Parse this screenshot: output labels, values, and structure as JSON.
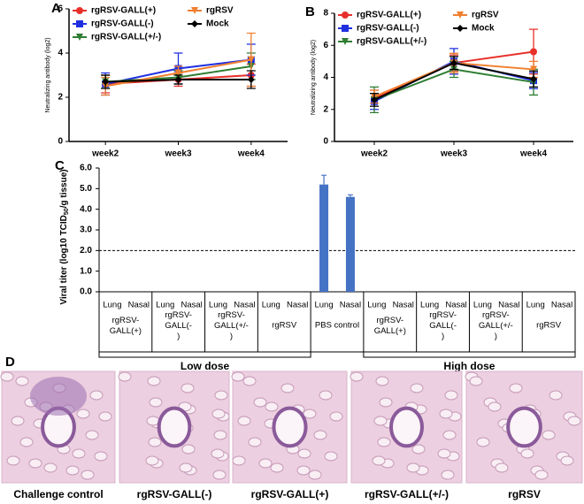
{
  "panel_labels": [
    "A",
    "B",
    "C",
    "D"
  ],
  "chart_data": [
    {
      "type": "line",
      "ylabel": "Neutralizing antibody (log2)",
      "categories": [
        "week2",
        "week3",
        "week4"
      ],
      "ylim": [
        0,
        6
      ],
      "yticks": [
        0,
        2,
        4,
        6
      ],
      "legend": "upper left",
      "series": [
        {
          "name": "rgRSV-GALL(+)",
          "color": "#e8302a",
          "marker": "circle",
          "values": [
            2.6,
            2.8,
            3.0
          ],
          "errors": [
            0.4,
            0.3,
            0.5
          ]
        },
        {
          "name": "rgRSV-GALL(-)",
          "color": "#1f2fe0",
          "marker": "square",
          "values": [
            2.6,
            3.3,
            3.7
          ],
          "errors": [
            0.5,
            0.7,
            0.7
          ]
        },
        {
          "name": "rgRSV-GALL(+/-)",
          "color": "#2e7d32",
          "marker": "triangle",
          "values": [
            2.7,
            2.9,
            3.4
          ],
          "errors": [
            0.3,
            0.3,
            0.6
          ]
        },
        {
          "name": "rgRSV",
          "color": "#f08030",
          "marker": "triangle",
          "values": [
            2.5,
            3.1,
            3.7
          ],
          "errors": [
            0.4,
            0.3,
            1.2
          ]
        },
        {
          "name": "Mock",
          "color": "#000000",
          "marker": "diamond",
          "values": [
            2.7,
            2.8,
            2.8
          ],
          "errors": [
            0.3,
            0.2,
            0.4
          ]
        }
      ]
    },
    {
      "type": "line",
      "ylabel": "Neutralizing antibody (log2)",
      "categories": [
        "week2",
        "week3",
        "week4"
      ],
      "ylim": [
        0,
        8
      ],
      "yticks": [
        0,
        2,
        4,
        6,
        8
      ],
      "legend": "upper left",
      "series": [
        {
          "name": "rgRSV-GALL(+)",
          "color": "#e8302a",
          "marker": "circle",
          "values": [
            2.7,
            4.9,
            5.6
          ],
          "errors": [
            0.5,
            0.5,
            1.4
          ]
        },
        {
          "name": "rgRSV-GALL(-)",
          "color": "#1f2fe0",
          "marker": "square",
          "values": [
            2.5,
            5.0,
            3.8
          ],
          "errors": [
            0.5,
            0.8,
            0.5
          ]
        },
        {
          "name": "rgRSV-GALL(+/-)",
          "color": "#2e7d32",
          "marker": "triangle",
          "values": [
            2.6,
            4.5,
            3.7
          ],
          "errors": [
            0.8,
            0.5,
            0.8
          ]
        },
        {
          "name": "rgRSV",
          "color": "#f08030",
          "marker": "triangle",
          "values": [
            2.8,
            4.9,
            4.5
          ],
          "errors": [
            0.4,
            0.6,
            0.5
          ]
        },
        {
          "name": "Mock",
          "color": "#000000",
          "marker": "diamond",
          "values": [
            2.6,
            4.9,
            3.9
          ],
          "errors": [
            0.4,
            0.4,
            0.5
          ]
        }
      ]
    },
    {
      "type": "bar",
      "ylabel": [
        "Viral titer (log10 TCID",
        "50",
        "/g tissue)"
      ],
      "categories": [
        "Lung",
        "Nasal",
        "Lung",
        "Nasal",
        "Lung",
        "Nasal",
        "Lung",
        "Nasal",
        "Lung",
        "Nasal",
        "Lung",
        "Nasal",
        "Lung",
        "Nasal",
        "Lung",
        "Nasal",
        "Lung",
        "Nasal"
      ],
      "groups": [
        "rgRSV-GALL(+)",
        "rgRSV-GALL(-)",
        "rgRSV-GALL(+/-)",
        "rgRSV",
        "PBS control",
        "rgRSV-GALL(+)",
        "rgRSV-GALL(-)",
        "rgRSV-GALL(+/-)",
        "rgRSV"
      ],
      "doses": [
        {
          "label": "Low dose",
          "groups": [
            0,
            3
          ]
        },
        {
          "label": "High dose",
          "groups": [
            5,
            8
          ]
        }
      ],
      "values": [
        null,
        null,
        null,
        null,
        null,
        null,
        null,
        null,
        5.2,
        4.6,
        null,
        null,
        null,
        null,
        null,
        null,
        null,
        null
      ],
      "errors": [
        null,
        null,
        null,
        null,
        null,
        null,
        null,
        null,
        0.45,
        0.1,
        null,
        null,
        null,
        null,
        null,
        null,
        null,
        null
      ],
      "color": "#4472c4",
      "threshold": 2,
      "ylim": [
        0,
        6
      ],
      "yticks": [
        {
          "value": 0,
          "label": "0.0"
        },
        {
          "value": 1,
          "label": "1.0"
        },
        {
          "value": 2,
          "label": "2.0"
        },
        {
          "value": 3,
          "label": "3.0"
        },
        {
          "value": 4,
          "label": "4.0"
        },
        {
          "value": 5,
          "label": "5.0"
        },
        {
          "value": 6,
          "label": "6.0"
        }
      ]
    }
  ],
  "histology": {
    "captions": [
      "Challenge control",
      "rgRSV-GALL(-)",
      "rgRSV-GALL(+)",
      "rgRSV-GALL(+/-)",
      "rgRSV"
    ]
  }
}
